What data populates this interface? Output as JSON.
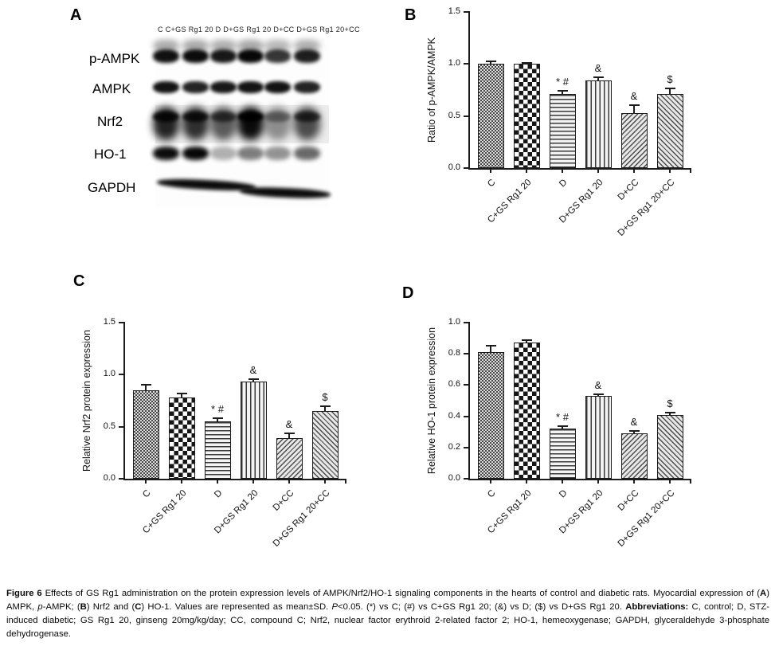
{
  "blot": {
    "panel": "A",
    "lane_header": "C  C+GS Rg1 20   D   D+GS Rg1 20 D+CC D+GS Rg1 20+CC",
    "rows": [
      {
        "label": "p-AMPK",
        "intensities": [
          0.93,
          0.95,
          0.9,
          0.97,
          0.78,
          0.88
        ]
      },
      {
        "label": "AMPK",
        "intensities": [
          0.92,
          0.86,
          0.9,
          0.92,
          0.92,
          0.86
        ]
      },
      {
        "label": "Nrf2",
        "intensities": [
          0.85,
          0.8,
          0.62,
          0.95,
          0.4,
          0.68
        ]
      },
      {
        "label": "HO-1",
        "intensities": [
          0.95,
          0.97,
          0.3,
          0.5,
          0.42,
          0.58
        ]
      },
      {
        "label": "GAPDH",
        "intensities": [
          0.95,
          0.95,
          0.95,
          0.95,
          0.95,
          0.95
        ]
      }
    ]
  },
  "chart_data": [
    {
      "panel": "B",
      "type": "bar",
      "title": "",
      "xlabel": "",
      "ylabel": "Ratio of p-AMPK/AMPK",
      "ylim": [
        0,
        1.5
      ],
      "yticks": [
        "0.0",
        "0.5",
        "1.0",
        "1.5"
      ],
      "grid": false,
      "legend": "none",
      "categories": [
        "C",
        "C+GS Rg1 20",
        "D",
        "D+GS Rg1 20",
        "D+CC",
        "D+GS Rg1 20+CC"
      ],
      "values": [
        1.0,
        1.0,
        0.71,
        0.84,
        0.53,
        0.71
      ],
      "errors": [
        0.025,
        0.012,
        0.03,
        0.035,
        0.075,
        0.055
      ],
      "annotations": [
        "",
        "",
        "* #",
        "&",
        "&",
        "$"
      ],
      "patterns": [
        "fine-checker",
        "checker",
        "hlines",
        "vlines",
        "diag-up",
        "diag-down"
      ]
    },
    {
      "panel": "C",
      "type": "bar",
      "title": "",
      "xlabel": "",
      "ylabel": "Relative Nrf2 protein expression",
      "ylim": [
        0,
        1.5
      ],
      "yticks": [
        "0.0",
        "0.5",
        "1.0",
        "1.5"
      ],
      "grid": false,
      "legend": "none",
      "categories": [
        "C",
        "C+GS Rg1 20",
        "D",
        "D+GS Rg1 20",
        "D+CC",
        "D+GS Rg1 20+CC"
      ],
      "values": [
        0.85,
        0.78,
        0.55,
        0.93,
        0.39,
        0.65
      ],
      "errors": [
        0.05,
        0.04,
        0.03,
        0.025,
        0.045,
        0.05
      ],
      "annotations": [
        "",
        "",
        "* #",
        "&",
        "&",
        "$"
      ],
      "patterns": [
        "fine-checker",
        "checker",
        "hlines",
        "vlines",
        "diag-up",
        "diag-down"
      ]
    },
    {
      "panel": "D",
      "type": "bar",
      "title": "",
      "xlabel": "",
      "ylabel": "Relative HO-1 protein expression",
      "ylim": [
        0,
        1.0
      ],
      "yticks": [
        "0.0",
        "0.2",
        "0.4",
        "0.6",
        "0.8",
        "1.0"
      ],
      "grid": false,
      "legend": "none",
      "categories": [
        "C",
        "C+GS Rg1 20",
        "D",
        "D+GS Rg1 20",
        "D+CC",
        "D+GS Rg1 20+CC"
      ],
      "values": [
        0.81,
        0.87,
        0.32,
        0.53,
        0.29,
        0.41
      ],
      "errors": [
        0.04,
        0.02,
        0.018,
        0.012,
        0.018,
        0.012
      ],
      "annotations": [
        "",
        "",
        "* #",
        "&",
        "&",
        "$"
      ],
      "patterns": [
        "fine-checker",
        "checker",
        "hlines",
        "vlines",
        "diag-up",
        "diag-down"
      ]
    }
  ],
  "caption": {
    "segments": [
      [
        "b",
        "Figure 6"
      ],
      [
        "",
        " Effects of GS Rg1 administration on the protein expression levels of AMPK/Nrf2/HO-1 signaling components in the hearts of control and diabetic rats. Myocardial expression of ("
      ],
      [
        "b",
        "A"
      ],
      [
        "",
        ") AMPK, "
      ],
      [
        "i",
        "p"
      ],
      [
        "",
        "-AMPK; ("
      ],
      [
        "b",
        "B"
      ],
      [
        "",
        ") Nrf2 and ("
      ],
      [
        "b",
        "C"
      ],
      [
        "",
        ") HO-1. Values are represented as mean±SD. "
      ],
      [
        "i",
        "P"
      ],
      [
        "",
        "<0.05. (*) vs C; (#) vs C+GS Rg1 20; (&) vs D; ($) vs D+GS Rg1 20. "
      ],
      [
        "b",
        "Abbreviations:"
      ],
      [
        "",
        " C, control; D, STZ-induced diabetic; GS Rg1 20, ginseng 20mg/kg/day; CC, compound C; Nrf2, nuclear factor erythroid 2-related factor 2; HO-1, hemeoxygenase; GAPDH, glyceraldehyde 3-phosphate dehydrogenase."
      ]
    ]
  }
}
